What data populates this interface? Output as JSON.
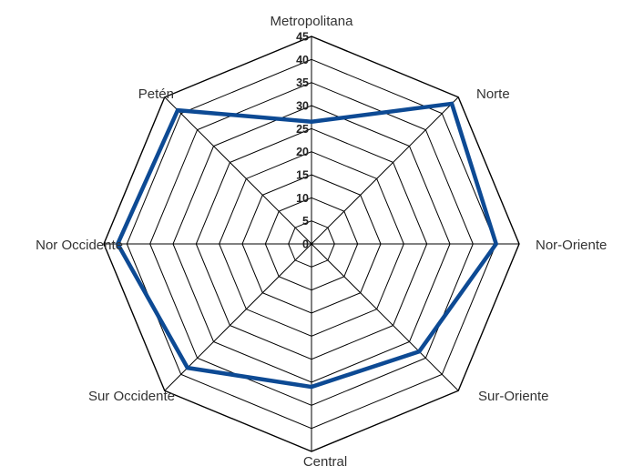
{
  "chart_data": {
    "type": "radar",
    "categories": [
      "Metropolitana",
      "Norte",
      "Nor-Oriente",
      "Sur-Oriente",
      "Central",
      "Sur Occidente",
      "Nor Occidente",
      "Petén"
    ],
    "values": [
      26.5,
      43,
      40,
      33,
      31,
      38,
      42,
      41
    ],
    "rlim": [
      0,
      45
    ],
    "ticks": [
      "0",
      "5",
      "10",
      "15",
      "20",
      "25",
      "30",
      "35",
      "40",
      "45"
    ],
    "grid": true,
    "colors": {
      "series": "#0d4a94",
      "grid": "#000000"
    }
  }
}
